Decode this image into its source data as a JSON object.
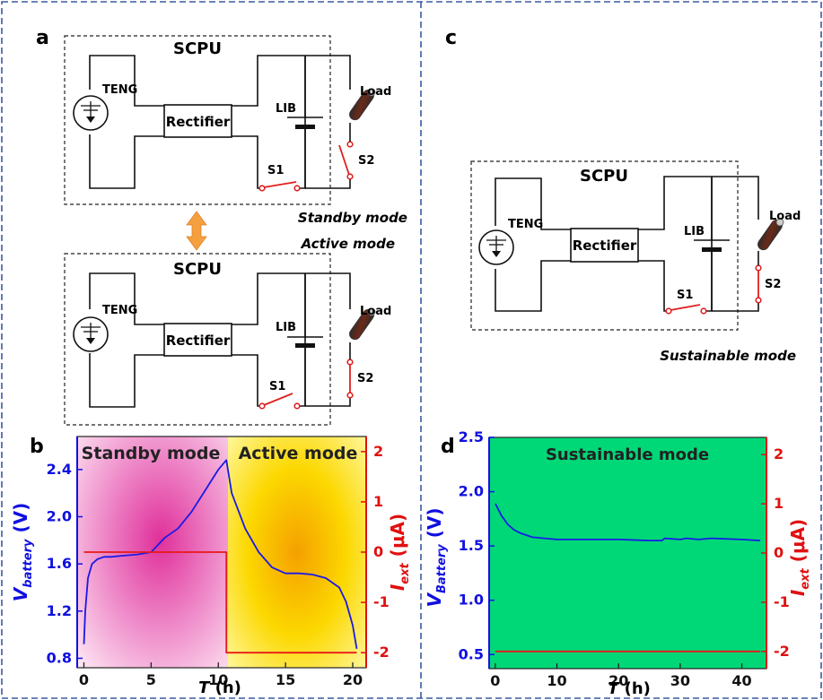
{
  "panel_a": {
    "letter": "a",
    "top_circuit": {
      "box_label": "SCPU",
      "source": "TENG",
      "rectifier": "Rectifier",
      "battery": "LIB",
      "load": "Load",
      "switch1": "S1",
      "switch2": "S2",
      "mode": "Standby mode"
    },
    "bottom_circuit": {
      "box_label": "SCPU",
      "source": "TENG",
      "rectifier": "Rectifier",
      "battery": "LIB",
      "load": "Load",
      "switch1": "S1",
      "switch2": "S2",
      "mode": "Active mode"
    }
  },
  "panel_c": {
    "letter": "c",
    "circuit": {
      "box_label": "SCPU",
      "source": "TENG",
      "rectifier": "Rectifier",
      "battery": "LIB",
      "load": "Load",
      "switch1": "S1",
      "switch2": "S2",
      "mode": "Sustainable mode"
    }
  },
  "colors": {
    "panel_border": "#3a5aa0",
    "left_axis": "#1010e0",
    "right_axis": "#e01010",
    "switch": "#e02020",
    "arrow": "#f5a040",
    "green_bg": "#00d878"
  },
  "chart_data": [
    {
      "panel": "b",
      "type": "line",
      "regions": [
        "Standby mode",
        "Active mode"
      ],
      "xlabel": "T (h)",
      "ylabel_left": "V_battery (V)",
      "ylabel_right": "I_ext (μA)",
      "xlim": [
        -0.5,
        21
      ],
      "ylim_left": [
        0.72,
        2.68
      ],
      "ylim_right": [
        -2.3,
        2.3
      ],
      "xticks": [
        0,
        5,
        10,
        15,
        20
      ],
      "yticks_left": [
        0.8,
        1.2,
        1.6,
        2.0,
        2.4
      ],
      "yticks_right": [
        -2,
        -1,
        0,
        1,
        2
      ],
      "series": [
        {
          "axis": "left",
          "color": "#1a1ae6",
          "x": [
            0,
            0.1,
            0.3,
            0.6,
            1.0,
            1.5,
            2.0,
            3.0,
            4.0,
            5.0,
            5.5,
            6.0,
            7.0,
            8.0,
            9.0,
            10.0,
            10.6,
            11.0,
            12.0,
            13.0,
            14.0,
            15.0,
            16.0,
            17.0,
            18.0,
            19.0,
            19.5,
            20.0,
            20.3
          ],
          "y": [
            0.92,
            1.2,
            1.48,
            1.6,
            1.64,
            1.66,
            1.66,
            1.67,
            1.68,
            1.7,
            1.76,
            1.82,
            1.9,
            2.04,
            2.22,
            2.4,
            2.48,
            2.2,
            1.9,
            1.7,
            1.57,
            1.52,
            1.52,
            1.51,
            1.48,
            1.4,
            1.28,
            1.08,
            0.88
          ]
        },
        {
          "axis": "right",
          "color": "#e81818",
          "x": [
            0,
            10.6,
            10.6,
            20.3
          ],
          "y": [
            0,
            0,
            -2,
            -2
          ]
        }
      ]
    },
    {
      "panel": "d",
      "type": "line",
      "regions": [
        "Sustainable mode"
      ],
      "xlabel": "T (h)",
      "ylabel_left": "V_Battery (V)",
      "ylabel_right": "I_ext (μA)",
      "xlim": [
        -1,
        44
      ],
      "ylim_left": [
        0.37,
        2.5
      ],
      "ylim_right": [
        -2.35,
        2.35
      ],
      "xticks": [
        0,
        10,
        20,
        30,
        40
      ],
      "yticks_left": [
        0.5,
        1.0,
        1.5,
        2.0,
        2.5
      ],
      "yticks_right": [
        -2,
        -1,
        0,
        1,
        2
      ],
      "series": [
        {
          "axis": "left",
          "color": "#1a1ae6",
          "x": [
            0,
            1,
            2,
            3,
            4,
            5,
            6,
            8,
            10,
            15,
            20,
            25,
            27,
            27.5,
            30,
            31,
            33,
            35,
            40,
            43
          ],
          "y": [
            1.89,
            1.78,
            1.7,
            1.65,
            1.62,
            1.6,
            1.58,
            1.57,
            1.56,
            1.56,
            1.56,
            1.55,
            1.55,
            1.57,
            1.56,
            1.57,
            1.56,
            1.57,
            1.56,
            1.55
          ]
        },
        {
          "axis": "right",
          "color": "#e81818",
          "x": [
            0,
            43
          ],
          "y": [
            -2,
            -2
          ]
        }
      ]
    }
  ]
}
